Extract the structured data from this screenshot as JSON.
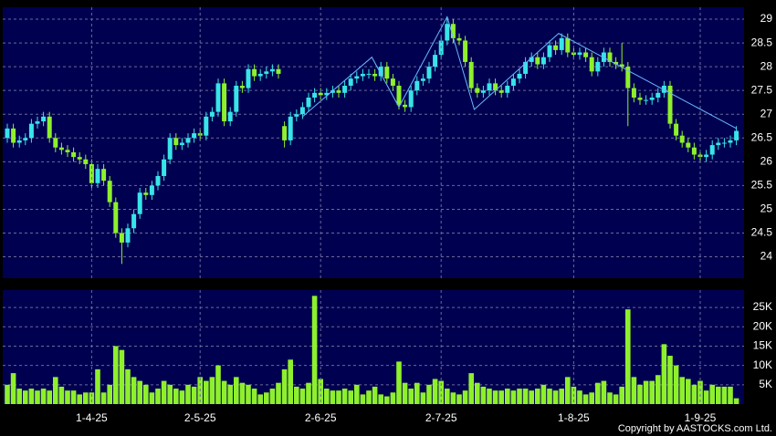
{
  "chart_data": [
    {
      "type": "candlestick",
      "up_color": "#38e4e8",
      "down_color": "#8ef02c",
      "grid": true,
      "ylim": [
        23.55,
        29.25
      ],
      "yticks": [
        24,
        24.5,
        25,
        25.5,
        26,
        26.5,
        27,
        27.5,
        28,
        28.5,
        29
      ],
      "open": [
        26.5,
        26.7,
        26.4,
        26.45,
        26.5,
        26.8,
        26.85,
        26.95,
        26.5,
        26.3,
        26.25,
        26.2,
        26.1,
        26.05,
        25.95,
        25.55,
        25.85,
        25.6,
        25.15,
        24.5,
        24.3,
        24.6,
        24.9,
        25.35,
        25.3,
        25.5,
        25.7,
        26.05,
        26.5,
        26.35,
        26.4,
        26.5,
        26.6,
        26.55,
        26.95,
        27.05,
        27.65,
        26.85,
        27.05,
        27.6,
        27.55,
        27.95,
        27.8,
        27.85,
        27.9,
        27.95,
        26.75,
        26.45,
        26.95,
        27.0,
        27.15,
        27.35,
        27.45,
        27.4,
        27.45,
        27.5,
        27.45,
        27.6,
        27.75,
        27.8,
        27.85,
        27.85,
        27.8,
        28.0,
        27.75,
        27.6,
        27.2,
        27.15,
        27.5,
        27.7,
        27.75,
        28.0,
        28.25,
        28.55,
        28.9,
        28.6,
        28.55,
        28.1,
        27.55,
        27.45,
        27.5,
        27.65,
        27.5,
        27.45,
        27.6,
        27.75,
        27.85,
        28.1,
        28.2,
        28.05,
        28.2,
        28.45,
        28.35,
        28.6,
        28.3,
        28.25,
        28.3,
        28.2,
        27.9,
        28.1,
        28.3,
        28.1,
        28.05,
        28.0,
        27.55,
        27.35,
        27.3,
        27.3,
        27.35,
        27.45,
        27.6,
        26.8,
        26.55,
        26.4,
        26.3,
        26.15,
        26.1,
        26.15,
        26.35,
        26.4,
        26.4,
        26.45
      ],
      "high": [
        26.8,
        26.8,
        26.55,
        26.6,
        26.9,
        26.95,
        27.05,
        27.05,
        26.6,
        26.4,
        26.35,
        26.3,
        26.2,
        26.15,
        26.05,
        25.95,
        25.95,
        25.7,
        25.25,
        24.6,
        24.7,
        25.0,
        25.45,
        25.45,
        25.6,
        25.8,
        26.15,
        26.6,
        26.6,
        26.5,
        26.6,
        26.7,
        26.7,
        27.05,
        27.15,
        27.75,
        27.75,
        27.15,
        27.7,
        27.7,
        28.05,
        28.05,
        27.95,
        28.0,
        28.05,
        28.05,
        26.85,
        27.05,
        27.1,
        27.25,
        27.45,
        27.55,
        27.55,
        27.55,
        27.6,
        27.6,
        27.7,
        27.85,
        27.9,
        27.95,
        27.95,
        27.95,
        28.1,
        28.1,
        27.85,
        27.7,
        27.3,
        27.6,
        27.8,
        27.85,
        28.1,
        28.35,
        28.65,
        29.05,
        29.0,
        28.7,
        28.65,
        28.2,
        27.65,
        27.6,
        27.75,
        27.75,
        27.6,
        27.7,
        27.85,
        27.95,
        28.2,
        28.3,
        28.3,
        28.3,
        28.55,
        28.55,
        28.7,
        28.7,
        28.4,
        28.4,
        28.4,
        28.3,
        28.2,
        28.4,
        28.4,
        28.2,
        28.5,
        28.1,
        27.65,
        27.45,
        27.4,
        27.45,
        27.55,
        27.7,
        27.7,
        26.9,
        26.65,
        26.5,
        26.4,
        26.25,
        26.25,
        26.45,
        26.5,
        26.5,
        26.55,
        26.75
      ],
      "low": [
        26.4,
        26.3,
        26.3,
        26.35,
        26.4,
        26.7,
        26.75,
        26.4,
        26.2,
        26.15,
        26.1,
        26.0,
        25.95,
        25.85,
        25.45,
        25.45,
        25.5,
        25.05,
        24.4,
        23.85,
        24.2,
        24.5,
        24.8,
        25.2,
        25.2,
        25.4,
        25.6,
        25.95,
        26.25,
        26.25,
        26.3,
        26.4,
        26.45,
        26.45,
        26.85,
        26.95,
        26.75,
        26.75,
        26.95,
        27.45,
        27.45,
        27.7,
        27.7,
        27.75,
        27.8,
        27.75,
        26.3,
        26.35,
        26.85,
        26.9,
        27.05,
        27.25,
        27.3,
        27.3,
        27.35,
        27.35,
        27.35,
        27.5,
        27.65,
        27.7,
        27.75,
        27.7,
        27.7,
        27.65,
        27.5,
        27.1,
        27.05,
        27.05,
        27.4,
        27.6,
        27.65,
        27.9,
        28.15,
        28.45,
        28.5,
        28.45,
        28.0,
        27.45,
        27.35,
        27.35,
        27.4,
        27.4,
        27.35,
        27.35,
        27.5,
        27.65,
        27.75,
        28.0,
        27.95,
        27.95,
        28.1,
        28.25,
        28.25,
        28.2,
        28.15,
        28.15,
        28.1,
        27.8,
        27.8,
        28.0,
        28.0,
        27.95,
        27.9,
        26.75,
        27.25,
        27.2,
        27.2,
        27.2,
        27.25,
        27.35,
        26.7,
        26.45,
        26.3,
        26.2,
        26.05,
        26.0,
        26.0,
        26.05,
        26.25,
        26.3,
        26.3,
        26.35
      ],
      "close": [
        26.7,
        26.4,
        26.45,
        26.5,
        26.8,
        26.85,
        26.95,
        26.5,
        26.3,
        26.25,
        26.2,
        26.1,
        26.05,
        25.95,
        25.55,
        25.85,
        25.6,
        25.15,
        24.5,
        24.3,
        24.6,
        24.9,
        25.35,
        25.3,
        25.5,
        25.7,
        26.05,
        26.5,
        26.35,
        26.4,
        26.5,
        26.6,
        26.55,
        26.95,
        27.05,
        27.65,
        26.85,
        27.05,
        27.6,
        27.55,
        27.95,
        27.8,
        27.85,
        27.9,
        27.95,
        27.85,
        26.45,
        26.95,
        27.0,
        27.15,
        27.35,
        27.45,
        27.4,
        27.45,
        27.5,
        27.45,
        27.6,
        27.75,
        27.8,
        27.85,
        27.85,
        27.8,
        28.0,
        27.75,
        27.6,
        27.2,
        27.15,
        27.5,
        27.7,
        27.75,
        28.0,
        28.25,
        28.55,
        28.9,
        28.6,
        28.55,
        28.1,
        27.55,
        27.45,
        27.5,
        27.65,
        27.5,
        27.45,
        27.6,
        27.75,
        27.85,
        28.1,
        28.2,
        28.05,
        28.2,
        28.45,
        28.35,
        28.6,
        28.3,
        28.25,
        28.3,
        28.2,
        27.9,
        28.1,
        28.3,
        28.1,
        28.05,
        28.0,
        27.55,
        27.35,
        27.3,
        27.3,
        27.35,
        27.45,
        27.6,
        26.8,
        26.55,
        26.4,
        26.3,
        26.15,
        26.1,
        26.15,
        26.35,
        26.4,
        26.4,
        26.45,
        26.65
      ],
      "overlay": {
        "color": "#6ab8ff",
        "x": [
          49,
          60.5,
          65,
          73,
          77.5,
          91.5,
          121
        ],
        "values": [
          26.95,
          28.2,
          27.15,
          29.05,
          27.1,
          28.7,
          26.7
        ]
      }
    },
    {
      "type": "bar",
      "color": "#8ef02c",
      "grid": true,
      "ylim": [
        0,
        29500
      ],
      "yticks": [
        {
          "value": 5000,
          "label": "5K"
        },
        {
          "value": 10000,
          "label": "10K"
        },
        {
          "value": 15000,
          "label": "15K"
        },
        {
          "value": 20000,
          "label": "20K"
        },
        {
          "value": 25000,
          "label": "25K"
        }
      ],
      "categories": [
        null,
        null,
        null,
        null,
        null,
        null,
        null,
        null,
        null,
        null,
        null,
        null,
        null,
        null,
        "1-4-25",
        null,
        null,
        null,
        null,
        null,
        null,
        null,
        null,
        null,
        null,
        null,
        null,
        null,
        null,
        null,
        null,
        null,
        "2-5-25",
        null,
        null,
        null,
        null,
        null,
        null,
        null,
        null,
        null,
        null,
        null,
        null,
        null,
        null,
        null,
        null,
        null,
        null,
        null,
        "2-6-25",
        null,
        null,
        null,
        null,
        null,
        null,
        null,
        null,
        null,
        null,
        null,
        null,
        null,
        null,
        null,
        null,
        null,
        null,
        null,
        "2-7-25",
        null,
        null,
        null,
        null,
        null,
        null,
        null,
        null,
        null,
        null,
        null,
        null,
        null,
        null,
        null,
        null,
        null,
        null,
        null,
        null,
        null,
        "1-8-25",
        null,
        null,
        null,
        null,
        null,
        null,
        null,
        null,
        null,
        null,
        null,
        null,
        null,
        null,
        null,
        null,
        null,
        null,
        null,
        null,
        "1-9-25",
        null,
        null,
        null,
        null,
        null,
        null
      ],
      "values": [
        5000,
        8000,
        4000,
        3500,
        4000,
        3500,
        4000,
        3500,
        7000,
        4500,
        3500,
        3500,
        2500,
        3000,
        3000,
        9000,
        3000,
        5000,
        15000,
        14000,
        9000,
        7000,
        6000,
        5000,
        3000,
        4000,
        6000,
        5000,
        4000,
        3500,
        5000,
        4500,
        7000,
        6000,
        7000,
        10000,
        6000,
        5000,
        7000,
        5500,
        5000,
        4000,
        2500,
        3000,
        4000,
        5500,
        9000,
        11500,
        4500,
        4000,
        5500,
        28000,
        6500,
        4000,
        3500,
        3500,
        4000,
        3500,
        5000,
        2500,
        3500,
        4500,
        2500,
        2000,
        3000,
        11000,
        5500,
        4000,
        5500,
        3000,
        5000,
        6500,
        6000,
        4000,
        3000,
        2500,
        3500,
        8000,
        5500,
        4500,
        4000,
        3500,
        3500,
        4000,
        3500,
        4000,
        4000,
        3500,
        4000,
        5000,
        4000,
        3500,
        4000,
        7000,
        4500,
        3500,
        2500,
        3000,
        5500,
        6000,
        3000,
        2500,
        4500,
        24500,
        7000,
        5000,
        6000,
        6000,
        7500,
        15500,
        12500,
        10000,
        7000,
        6500,
        5000,
        6000,
        3500,
        5000,
        4500,
        4500,
        4500,
        1500
      ]
    }
  ],
  "copyright": "Copyright by AASTOCKS.com Ltd."
}
